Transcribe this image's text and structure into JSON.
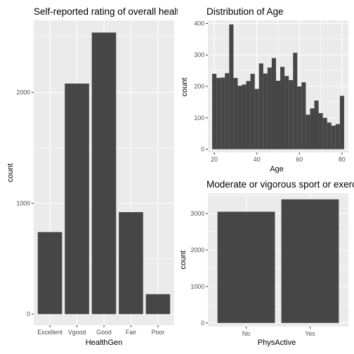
{
  "chart_data": [
    {
      "type": "bar",
      "title": "Self-reported rating of overall health",
      "xlabel": "HealthGen",
      "ylabel": "count",
      "categories": [
        "Excellent",
        "Vgood",
        "Good",
        "Fair",
        "Poor"
      ],
      "values": [
        740,
        2080,
        2540,
        920,
        180
      ],
      "ylim": [
        -100,
        2650
      ],
      "yticks": [
        0,
        1000,
        2000
      ],
      "ytick_labels": [
        "0",
        "1000",
        "2000"
      ],
      "grid": true
    },
    {
      "type": "bar",
      "title": "Distribution of Age",
      "xlabel": "Age",
      "ylabel": "count",
      "x": [
        20,
        22,
        24,
        26,
        28,
        30,
        32,
        34,
        36,
        38,
        40,
        42,
        44,
        46,
        48,
        50,
        52,
        54,
        56,
        58,
        60,
        62,
        64,
        66,
        68,
        70,
        72,
        74,
        76,
        78,
        80
      ],
      "values": [
        240,
        227,
        228,
        242,
        397,
        227,
        202,
        206,
        217,
        240,
        192,
        273,
        241,
        260,
        290,
        218,
        262,
        233,
        220,
        307,
        200,
        213,
        110,
        130,
        155,
        115,
        100,
        85,
        75,
        80,
        170
      ],
      "xlim": [
        17,
        83
      ],
      "ylim": [
        -10,
        410
      ],
      "xticks": [
        20,
        40,
        60,
        80
      ],
      "xtick_labels": [
        "20",
        "40",
        "60",
        "80"
      ],
      "yticks": [
        0,
        100,
        200,
        300,
        400
      ],
      "ytick_labels": [
        "0",
        "100",
        "200",
        "300",
        "400"
      ],
      "grid": true
    },
    {
      "type": "bar",
      "title": "Moderate or vigorous sport or exercise",
      "xlabel": "PhysActive",
      "ylabel": "count",
      "categories": [
        "No",
        "Yes"
      ],
      "values": [
        3050,
        3390
      ],
      "ylim": [
        -100,
        3560
      ],
      "yticks": [
        0,
        1000,
        2000,
        3000
      ],
      "ytick_labels": [
        "0",
        "1000",
        "2000",
        "3000"
      ],
      "grid": true
    }
  ]
}
